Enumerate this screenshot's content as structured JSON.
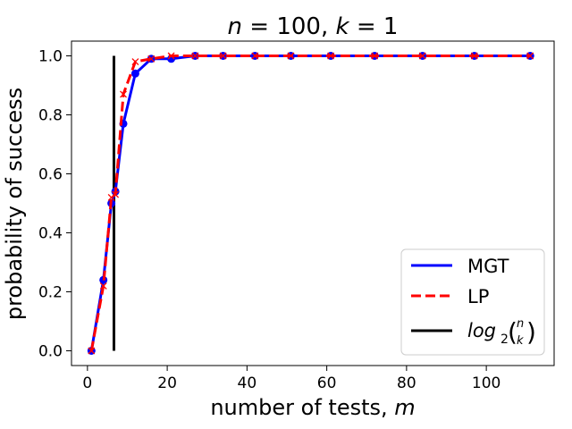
{
  "chart_data": {
    "type": "line",
    "title_italic_n": "n",
    "title_mid": " = 100, ",
    "title_italic_k": "k",
    "title_end": " = 1",
    "xlabel_text": "number of tests, ",
    "xlabel_italic": "m",
    "ylabel": "probability of success",
    "xlim": [
      -4,
      117
    ],
    "ylim": [
      -0.05,
      1.05
    ],
    "xticks": [
      0,
      20,
      40,
      60,
      80,
      100
    ],
    "yticks": [
      0.0,
      0.2,
      0.4,
      0.6,
      0.8,
      1.0
    ],
    "xtick_labels": [
      "0",
      "20",
      "40",
      "60",
      "80",
      "100"
    ],
    "ytick_labels": [
      "0.0",
      "0.2",
      "0.4",
      "0.6",
      "0.8",
      "1.0"
    ],
    "series": [
      {
        "name": "MGT",
        "color": "#0000ff",
        "marker": "circle",
        "style": "solid",
        "x": [
          1,
          4,
          6,
          7,
          9,
          12,
          16,
          21,
          27,
          34,
          42,
          51,
          61,
          72,
          84,
          97,
          111
        ],
        "y": [
          0.0,
          0.24,
          0.5,
          0.54,
          0.77,
          0.94,
          0.99,
          0.99,
          1.0,
          1.0,
          1.0,
          1.0,
          1.0,
          1.0,
          1.0,
          1.0,
          1.0
        ]
      },
      {
        "name": "LP",
        "color": "#ff0000",
        "marker": "x",
        "style": "dashed",
        "x": [
          1,
          4,
          6,
          7,
          9,
          12,
          16,
          21,
          27,
          34,
          42,
          51,
          61,
          72,
          84,
          97,
          111
        ],
        "y": [
          0.0,
          0.22,
          0.52,
          0.53,
          0.87,
          0.98,
          0.99,
          1.0,
          1.0,
          1.0,
          1.0,
          1.0,
          1.0,
          1.0,
          1.0,
          1.0,
          1.0
        ]
      }
    ],
    "vline": {
      "name_prefix": "log",
      "name_sub": "2",
      "name_binom_top": "n",
      "name_binom_bottom": "k",
      "color": "#000000",
      "x": 6.64,
      "y": [
        0.0,
        1.0
      ]
    },
    "legend": {
      "placement": "lower-right",
      "entries": [
        "MGT",
        "LP"
      ]
    },
    "grid": false
  }
}
